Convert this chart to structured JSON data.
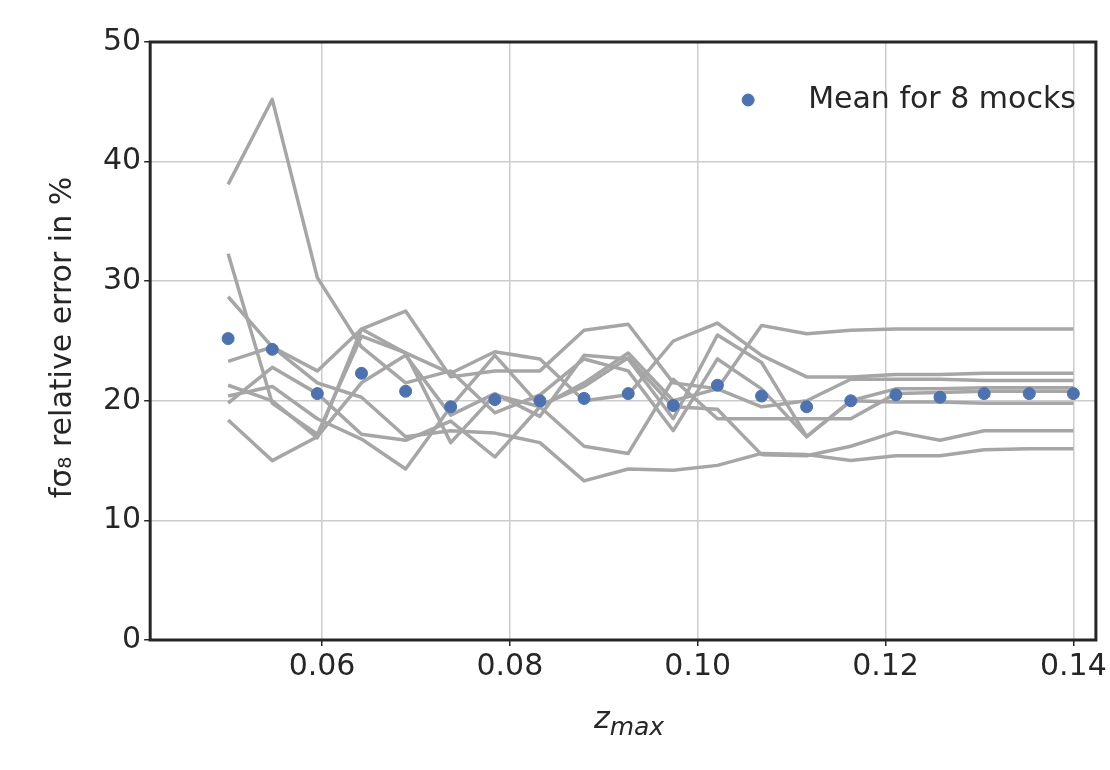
{
  "chart_data": {
    "type": "line",
    "xlabel": "z$_{max}$",
    "ylabel": "fσ₈ relative error in %",
    "x": [
      0.05,
      0.0547,
      0.0595,
      0.0642,
      0.0689,
      0.0737,
      0.0784,
      0.0832,
      0.0879,
      0.0926,
      0.0974,
      0.1021,
      0.1068,
      0.1116,
      0.1163,
      0.1211,
      0.1258,
      0.1305,
      0.1353,
      0.14
    ],
    "series": [
      {
        "color": "#a6a6a6",
        "values": [
          38.1,
          45.2,
          30.3,
          24.5,
          21.5,
          22.5,
          19.0,
          20.5,
          23.5,
          22.5,
          17.5,
          23.5,
          21.0,
          17.0,
          20.0,
          21.0,
          21.0,
          21.1,
          21.1,
          21.1
        ]
      },
      {
        "color": "#a6a6a6",
        "values": [
          32.3,
          19.8,
          17.2,
          25.4,
          24.0,
          16.5,
          20.5,
          19.5,
          21.5,
          24.0,
          20.0,
          21.0,
          19.5,
          20.0,
          21.8,
          21.8,
          21.8,
          21.7,
          21.7,
          21.7
        ]
      },
      {
        "color": "#a6a6a6",
        "values": [
          28.7,
          24.5,
          21.5,
          20.3,
          17.0,
          17.5,
          17.3,
          16.5,
          13.3,
          14.3,
          14.2,
          14.6,
          15.6,
          15.5,
          15.0,
          15.4,
          15.4,
          15.9,
          16.0,
          16.0
        ]
      },
      {
        "color": "#a6a6a6",
        "values": [
          23.3,
          24.5,
          22.5,
          26.0,
          24.0,
          22.3,
          24.1,
          23.5,
          20.0,
          20.5,
          25.0,
          26.5,
          23.8,
          22.0,
          22.0,
          22.2,
          22.2,
          22.3,
          22.3,
          22.3
        ]
      },
      {
        "color": "#a6a6a6",
        "values": [
          21.3,
          20.0,
          16.9,
          26.0,
          27.5,
          22.0,
          22.5,
          22.5,
          25.9,
          26.4,
          21.5,
          21.0,
          26.3,
          25.6,
          25.9,
          26.0,
          26.0,
          26.0,
          26.0,
          26.0
        ]
      },
      {
        "color": "#a6a6a6",
        "values": [
          20.4,
          21.2,
          18.5,
          16.8,
          14.3,
          19.5,
          23.8,
          19.6,
          21.2,
          23.6,
          19.5,
          19.3,
          15.5,
          15.4,
          16.2,
          17.4,
          16.7,
          17.5,
          17.5,
          17.5
        ]
      },
      {
        "color": "#a6a6a6",
        "values": [
          19.8,
          22.8,
          20.6,
          17.2,
          16.7,
          18.3,
          15.3,
          19.5,
          16.2,
          15.6,
          21.8,
          18.5,
          18.5,
          18.5,
          18.5,
          20.6,
          20.7,
          20.8,
          20.8,
          20.8
        ]
      },
      {
        "color": "#a6a6a6",
        "values": [
          18.4,
          15.0,
          17.0,
          21.5,
          23.8,
          18.8,
          20.6,
          18.7,
          23.8,
          23.5,
          18.5,
          25.5,
          23.2,
          17.0,
          20.0,
          19.9,
          19.9,
          19.8,
          19.8,
          19.8
        ]
      },
      {
        "type": "scatter",
        "name": "Mean for 8 mocks",
        "color": "#4c72b0",
        "marker": "circle",
        "values": [
          25.2,
          24.3,
          20.6,
          22.3,
          20.8,
          19.5,
          20.1,
          20.0,
          20.2,
          20.6,
          19.6,
          21.3,
          20.4,
          19.5,
          20.0,
          20.5,
          20.3,
          20.6,
          20.6,
          20.6
        ]
      }
    ],
    "xlim": [
      0.0417,
      0.1424
    ],
    "xticks": [
      0.06,
      0.08,
      {
        "value": 0.1,
        "label": "0.10"
      },
      0.12,
      0.14
    ],
    "ylim": [
      0,
      50
    ],
    "yticks": [
      0,
      10,
      20,
      30,
      40,
      50
    ],
    "grid": true,
    "legend": "top right",
    "marker": "none",
    "line_style": "solid"
  }
}
